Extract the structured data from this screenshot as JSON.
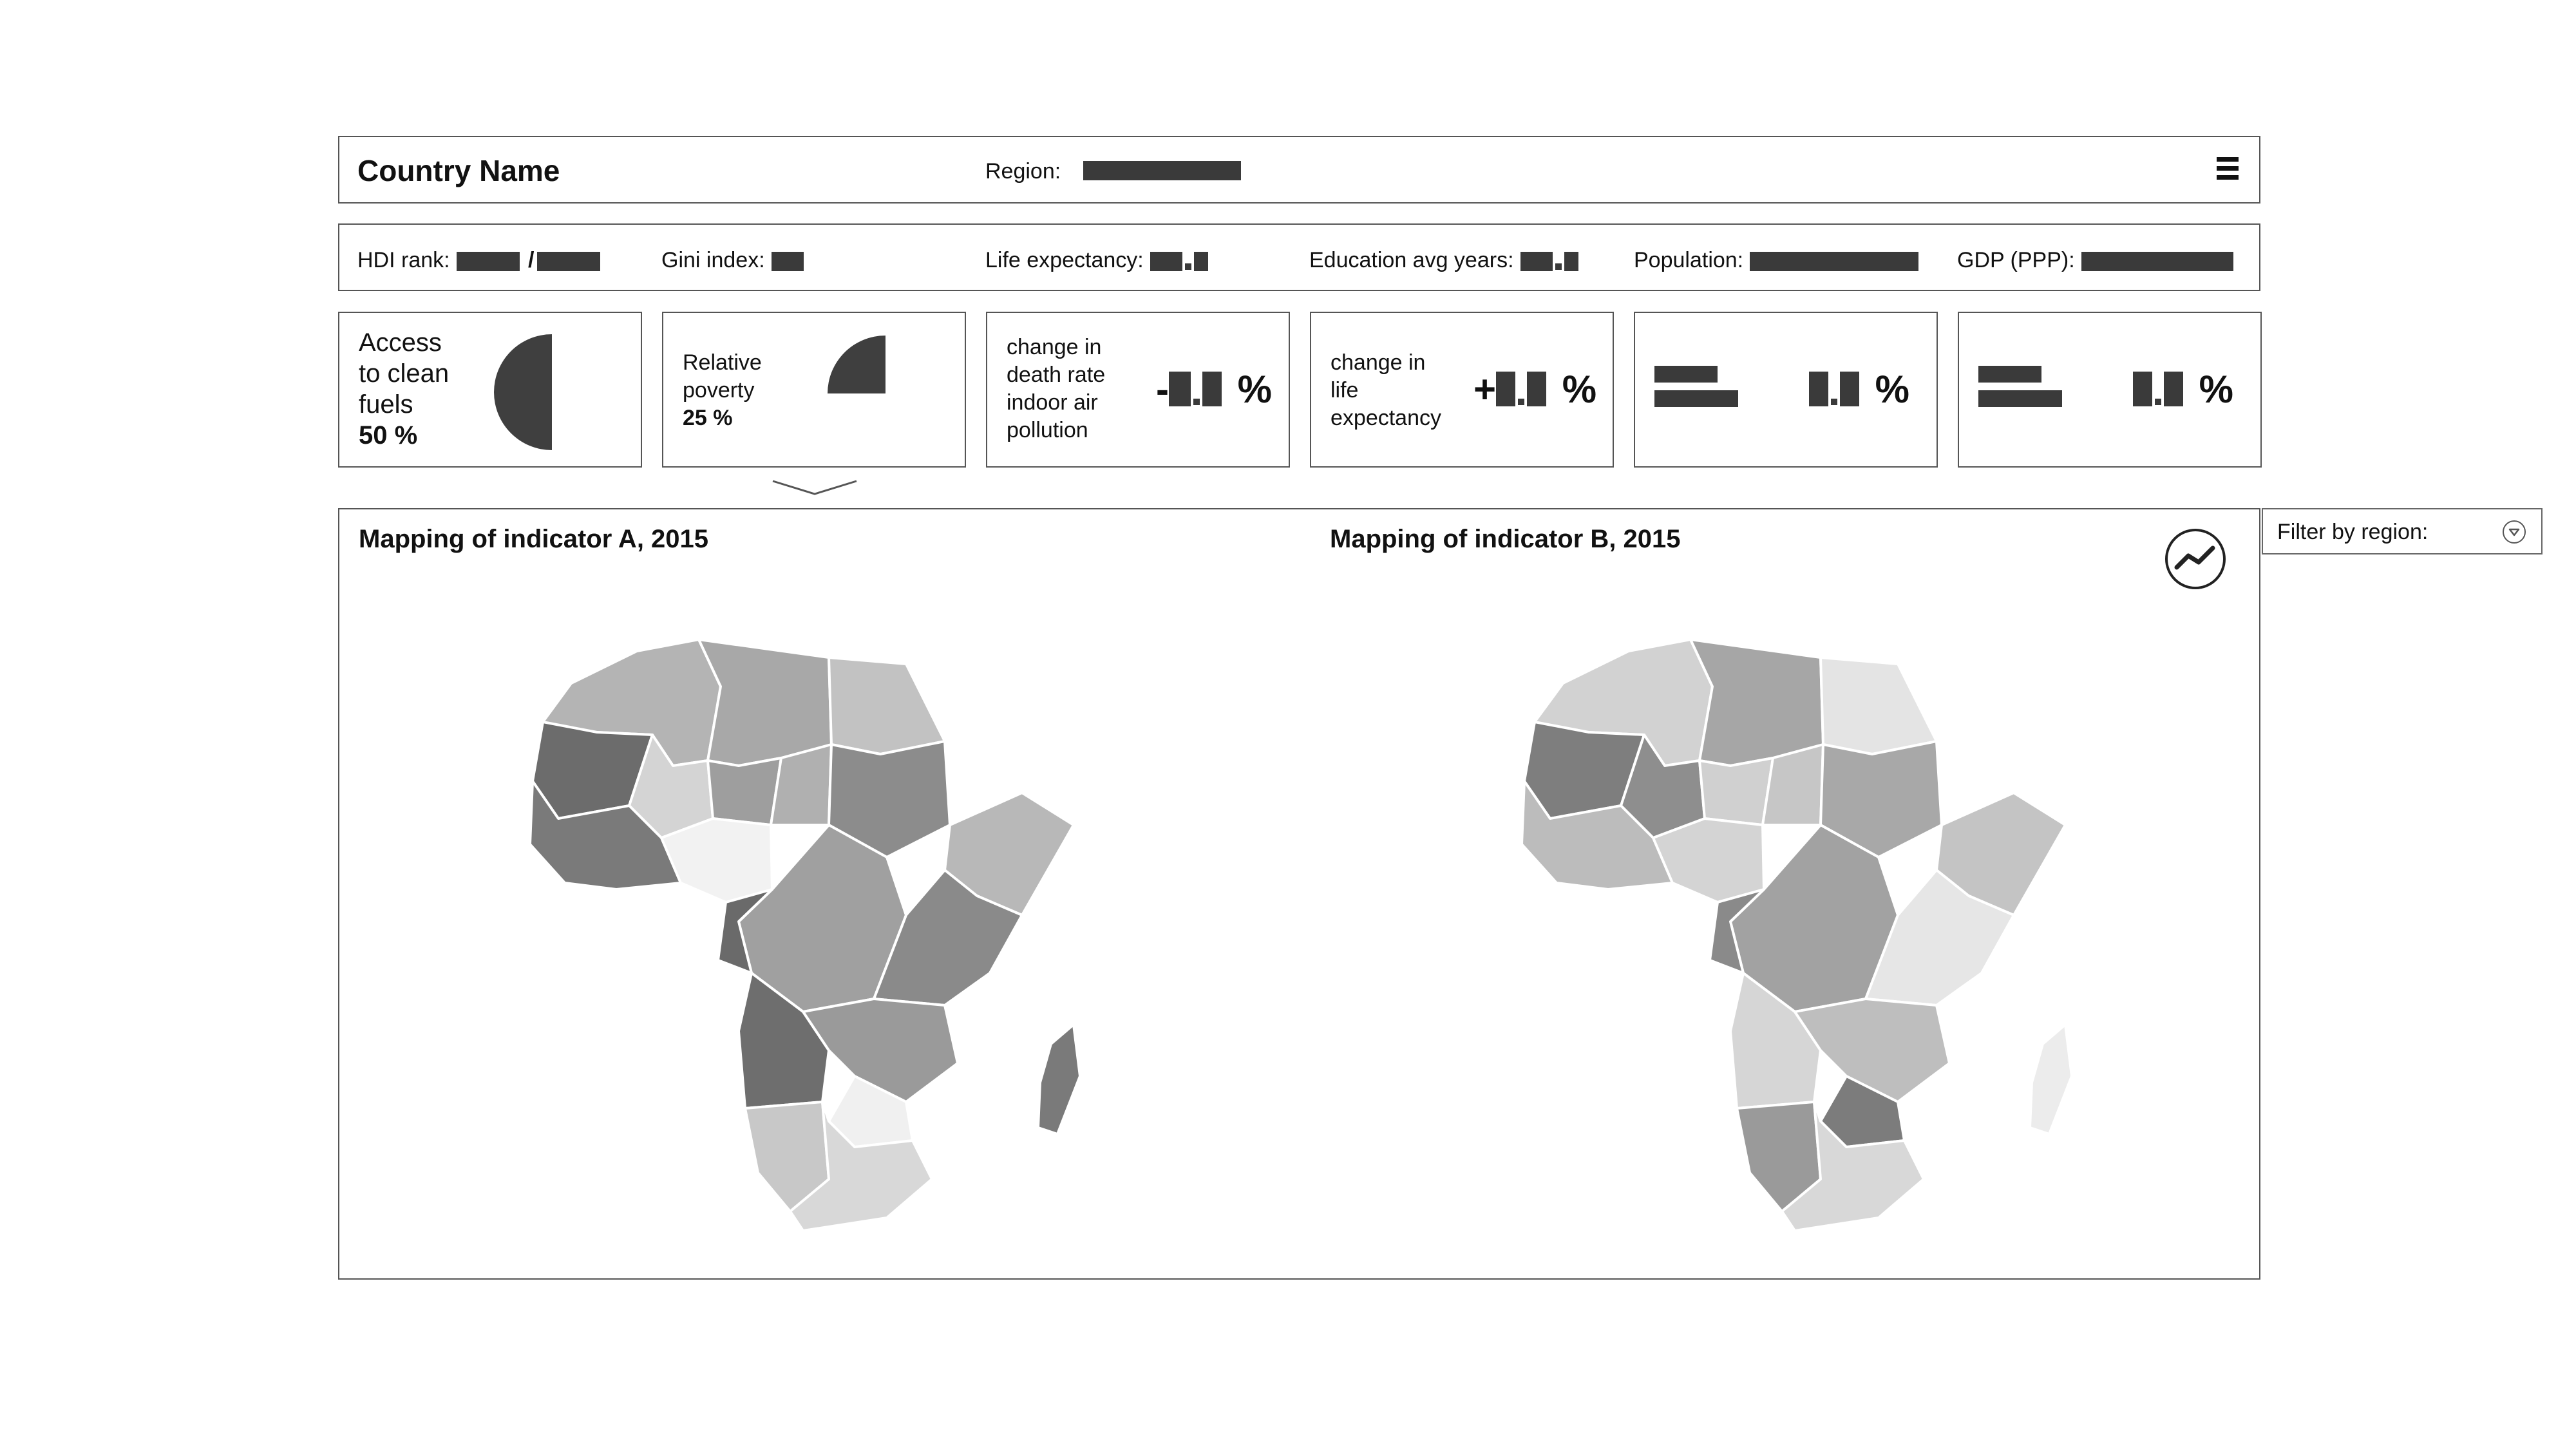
{
  "header": {
    "title": "Country Name",
    "region_label": "Region:"
  },
  "stats": {
    "hdi_label": "HDI rank:",
    "hdi_sep": "/",
    "gini_label": "Gini index:",
    "life_label": "Life expectancy:",
    "edu_label": "Education avg years:",
    "pop_label": "Population:",
    "gdp_label": "GDP (PPP):"
  },
  "cards": {
    "clean_fuels": {
      "line1": "Access",
      "line2": "to clean",
      "line3": "fuels",
      "value": "50 %",
      "fraction": 0.5
    },
    "poverty": {
      "line1": "Relative",
      "line2": "poverty",
      "value": "25 %",
      "fraction": 0.25
    },
    "death_rate": {
      "line1": "change in",
      "line2": "death rate",
      "line3": "indoor air",
      "line4": "pollution",
      "sign": "-",
      "unit": "%"
    },
    "life_change": {
      "line1": "change in",
      "line2": "life",
      "line3": "expectancy",
      "sign": "+",
      "unit": "%"
    },
    "card5": {
      "unit": "%"
    },
    "card6": {
      "unit": "%"
    }
  },
  "maps": {
    "a_title": "Mapping of indicator A, 2015",
    "b_title": "Mapping of indicator B, 2015"
  },
  "icons": {
    "menu": "menu-icon",
    "trend": "trend-line-icon",
    "dropdown": "chevron-down-icon"
  },
  "filter": {
    "label": "Filter by region:"
  },
  "colors": {
    "placeholder": "#3a3a3a",
    "pie": "#3f3f3f",
    "border": "#555555"
  }
}
